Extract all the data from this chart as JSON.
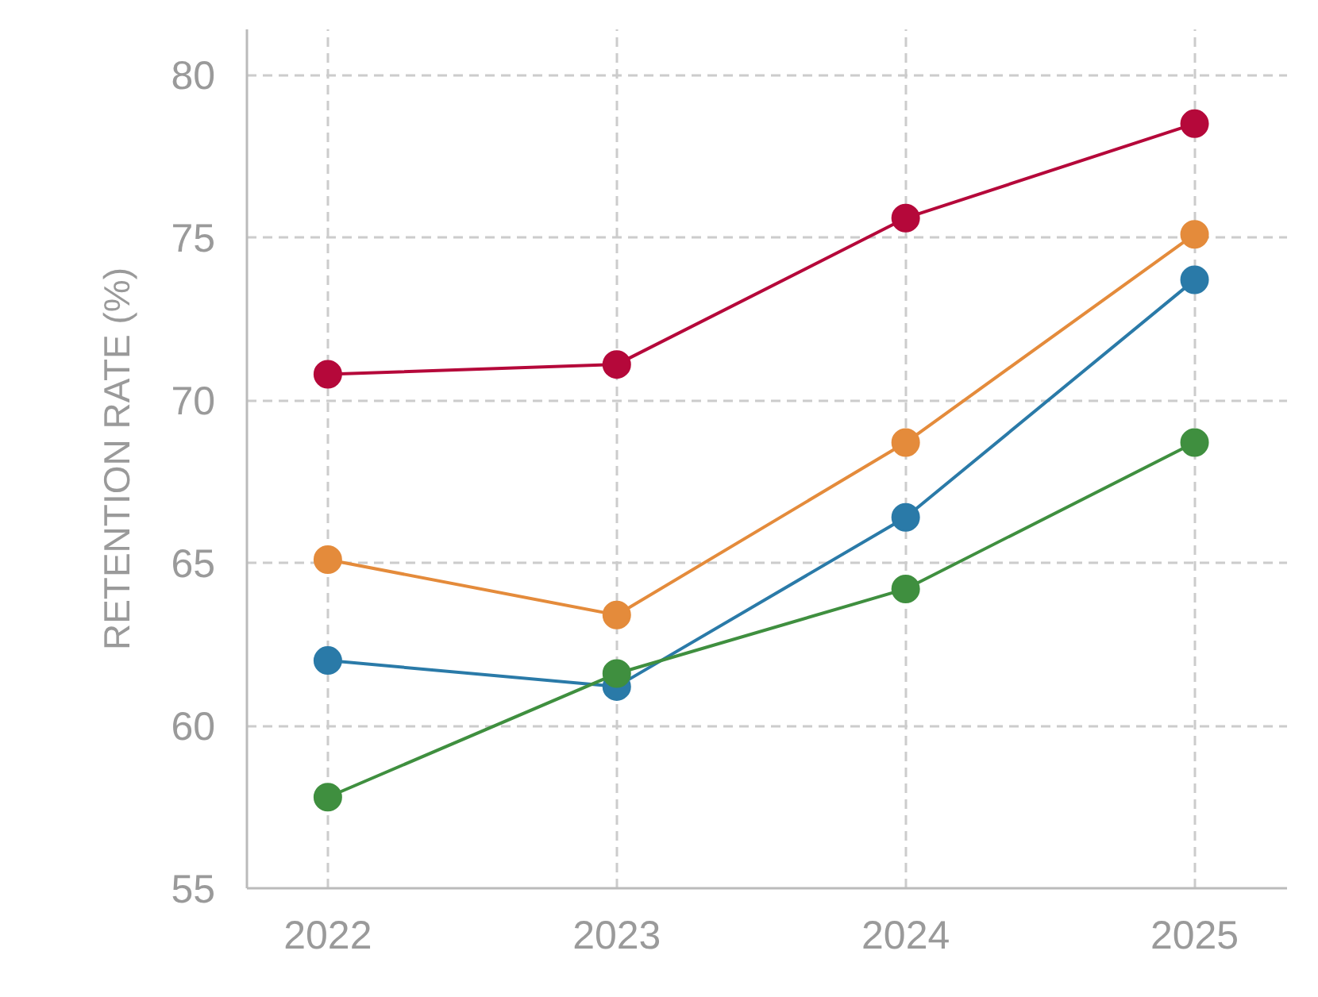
{
  "chart_data": {
    "type": "line",
    "ylabel": "RETENTION RATE (%)",
    "x": [
      2022,
      2023,
      2024,
      2025
    ],
    "series": [
      {
        "color": "#b5083a",
        "values": [
          70.8,
          71.1,
          75.6,
          78.5
        ]
      },
      {
        "color": "#e48b3b",
        "values": [
          65.1,
          63.4,
          68.7,
          75.1
        ]
      },
      {
        "color": "#2a7aa8",
        "values": [
          62.0,
          61.2,
          66.4,
          73.7
        ]
      },
      {
        "color": "#3f8f3f",
        "values": [
          57.8,
          61.6,
          64.2,
          68.7
        ]
      }
    ],
    "xlim": [
      2021.72,
      2025.32
    ],
    "xticks": [
      2022,
      2023,
      2024,
      2025
    ],
    "ylim": [
      55,
      81.4
    ],
    "yticks": [
      55,
      60,
      65,
      70,
      75,
      80
    ],
    "grid": true,
    "marker": "circle",
    "line_style": "solid"
  }
}
